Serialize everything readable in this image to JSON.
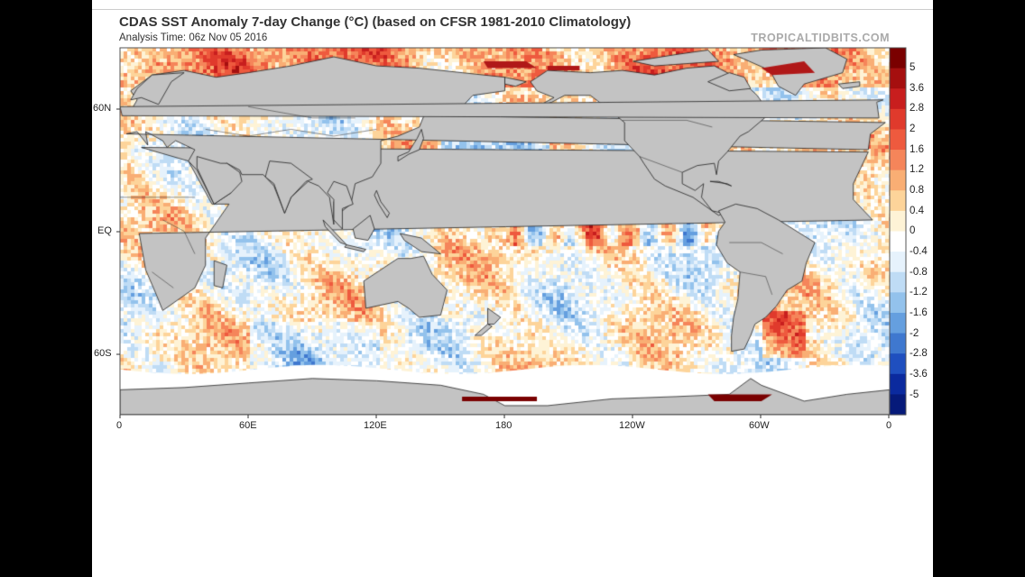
{
  "header": {
    "title": "CDAS SST Anomaly 7-day Change (°C) (based on CFSR 1981-2010 Climatology)",
    "subtitle": "Analysis Time: 06z Nov 05 2016",
    "brand": "TROPICALTIDBITS.COM"
  },
  "axes": {
    "lat_labels": [
      "60N",
      "EQ",
      "60S"
    ],
    "lon_labels": [
      "0",
      "60E",
      "120E",
      "180",
      "120W",
      "60W",
      "0"
    ]
  },
  "colorbar": {
    "labels": [
      "5",
      "3.6",
      "2.8",
      "2",
      "1.6",
      "1.2",
      "0.8",
      "0.4",
      "0",
      "-0.4",
      "-0.8",
      "-1.2",
      "-1.6",
      "-2",
      "-2.8",
      "-3.6",
      "-5"
    ],
    "colors": [
      "#7a0000",
      "#a50f0f",
      "#c81e1e",
      "#e03a2c",
      "#ee5a3e",
      "#f5855a",
      "#f9ae74",
      "#fdd49a",
      "#fef3d6",
      "#ffffff",
      "#e6f2fc",
      "#bfdcf5",
      "#93c2ec",
      "#659fdf",
      "#3f78cf",
      "#1f4fbf",
      "#0b2a9e",
      "#061a7a"
    ]
  },
  "colors": {
    "land": "#c3c3c3",
    "ice": "#ffffff",
    "border": "#222222"
  }
}
